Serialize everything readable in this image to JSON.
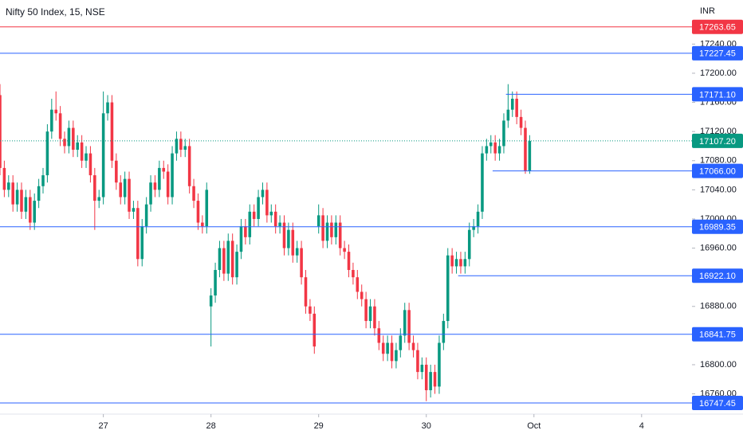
{
  "chart_data": {
    "type": "candlestick",
    "title": "Nifty 50 Index, 15, NSE",
    "currency": "INR",
    "up_color": "#089981",
    "down_color": "#f23645",
    "xlim": [
      0,
      160.7
    ],
    "ylim": [
      16732.2,
      17300.5
    ],
    "xticks": [
      {
        "value": 24,
        "label": "27"
      },
      {
        "value": 49,
        "label": "28"
      },
      {
        "value": 74,
        "label": "29"
      },
      {
        "value": 99,
        "label": "30"
      },
      {
        "value": 124,
        "label": "Oct"
      },
      {
        "value": 149,
        "label": "4"
      }
    ],
    "yticks": [
      {
        "value": 17240,
        "label": "17240.00"
      },
      {
        "value": 17200,
        "label": "17200.00"
      },
      {
        "value": 17160,
        "label": "17160.00"
      },
      {
        "value": 17120,
        "label": "17120.00"
      },
      {
        "value": 17080,
        "label": "17080.00"
      },
      {
        "value": 17040,
        "label": "17040.00"
      },
      {
        "value": 17000,
        "label": "17000.00"
      },
      {
        "value": 16960,
        "label": "16960.00"
      },
      {
        "value": 16880,
        "label": "16880.00"
      },
      {
        "value": 16800,
        "label": "16800.00"
      },
      {
        "value": 16760,
        "label": "16760.00"
      }
    ],
    "x": [
      0,
      1,
      2,
      3,
      4,
      5,
      6,
      7,
      8,
      9,
      10,
      11,
      12,
      13,
      14,
      15,
      16,
      17,
      18,
      19,
      20,
      21,
      22,
      23,
      24,
      25,
      26,
      27,
      28,
      29,
      30,
      31,
      32,
      33,
      34,
      35,
      36,
      37,
      38,
      39,
      40,
      41,
      42,
      43,
      44,
      45,
      46,
      47,
      48,
      49,
      50,
      51,
      52,
      53,
      54,
      55,
      56,
      57,
      58,
      59,
      60,
      61,
      62,
      63,
      64,
      65,
      66,
      67,
      68,
      69,
      70,
      71,
      72,
      73,
      74,
      75,
      76,
      77,
      78,
      79,
      80,
      81,
      82,
      83,
      84,
      85,
      86,
      87,
      88,
      89,
      90,
      91,
      92,
      93,
      94,
      95,
      96,
      97,
      98,
      99,
      100,
      101,
      102,
      103,
      104,
      105,
      106,
      107,
      108,
      109,
      110,
      111,
      112,
      113,
      114,
      115,
      116,
      117,
      118,
      119,
      120,
      121,
      122,
      123
    ],
    "open": [
      17170,
      17070,
      17040,
      17050,
      17020,
      17040,
      17010,
      17030,
      16995,
      17025,
      17045,
      17060,
      17120,
      17150,
      17145,
      17110,
      17100,
      17125,
      17095,
      17105,
      17080,
      17090,
      17060,
      17025,
      17030,
      17145,
      17160,
      17080,
      17050,
      17030,
      17055,
      17010,
      17015,
      16945,
      16990,
      17020,
      17050,
      17040,
      17070,
      17065,
      17030,
      17090,
      17110,
      17095,
      17100,
      17045,
      17025,
      16995,
      16990,
      16880,
      16895,
      16930,
      16960,
      16925,
      16970,
      16920,
      16955,
      16990,
      16975,
      17010,
      17000,
      17030,
      17040,
      17005,
      17010,
      16990,
      16995,
      16960,
      16985,
      16950,
      16960,
      16920,
      16880,
      16870,
      16990,
      17005,
      16970,
      16995,
      16975,
      16995,
      16960,
      16955,
      16930,
      16920,
      16900,
      16890,
      16860,
      16880,
      16850,
      16830,
      16815,
      16830,
      16805,
      16820,
      16840,
      16875,
      16830,
      16820,
      16790,
      16800,
      16765,
      16790,
      16770,
      16830,
      16860,
      16950,
      16935,
      16945,
      16935,
      16945,
      16985,
      16990,
      17010,
      17090,
      17100,
      17105,
      17090,
      17100,
      17135,
      17150,
      17165,
      17140,
      17125,
      17066
    ],
    "high": [
      17185,
      17080,
      17060,
      17060,
      17050,
      17050,
      17040,
      17040,
      17035,
      17055,
      17070,
      17130,
      17165,
      17175,
      17155,
      17120,
      17135,
      17135,
      17115,
      17115,
      17100,
      17100,
      17070,
      17040,
      17175,
      17170,
      17170,
      17090,
      17060,
      17065,
      17065,
      17025,
      17025,
      17000,
      17030,
      17060,
      17060,
      17080,
      17080,
      17075,
      17100,
      17120,
      17120,
      17110,
      17110,
      17055,
      17035,
      17005,
      17050,
      16905,
      16940,
      16970,
      16970,
      16980,
      16980,
      16965,
      17000,
      17000,
      17020,
      17020,
      17040,
      17050,
      17050,
      17020,
      17020,
      17005,
      17005,
      16995,
      16995,
      16970,
      16970,
      16930,
      16890,
      16880,
      17020,
      17015,
      17005,
      17005,
      17005,
      17005,
      16970,
      16965,
      16940,
      16930,
      16910,
      16900,
      16890,
      16890,
      16860,
      16840,
      16840,
      16840,
      16830,
      16850,
      16885,
      16885,
      16840,
      16830,
      16810,
      16810,
      16800,
      16800,
      16840,
      16870,
      16960,
      16960,
      16955,
      16955,
      16955,
      16995,
      17000,
      17020,
      17100,
      17110,
      17115,
      17115,
      17110,
      17145,
      17185,
      17175,
      17175,
      17150,
      17135,
      17115
    ],
    "low": [
      17060,
      17030,
      17030,
      17010,
      17010,
      17000,
      17000,
      16985,
      16985,
      17015,
      17035,
      17050,
      17110,
      17135,
      17100,
      17090,
      17090,
      17085,
      17085,
      17070,
      17070,
      17050,
      16985,
      17015,
      17020,
      17135,
      17070,
      17040,
      17020,
      17020,
      17000,
      17000,
      16935,
      16935,
      16980,
      17010,
      17030,
      17030,
      17055,
      17020,
      17020,
      17080,
      17085,
      17085,
      17035,
      17015,
      16985,
      16980,
      16980,
      16825,
      16885,
      16920,
      16915,
      16915,
      16910,
      16910,
      16945,
      16965,
      16965,
      16990,
      16990,
      17020,
      16995,
      16995,
      16980,
      16980,
      16950,
      16950,
      16940,
      16940,
      16910,
      16870,
      16860,
      16815,
      16980,
      16960,
      16960,
      16965,
      16965,
      16950,
      16945,
      16920,
      16910,
      16890,
      16880,
      16850,
      16850,
      16840,
      16820,
      16805,
      16805,
      16795,
      16795,
      16810,
      16830,
      16820,
      16810,
      16780,
      16780,
      16750,
      16755,
      16760,
      16760,
      16820,
      16850,
      16925,
      16925,
      16925,
      16925,
      16935,
      16975,
      16980,
      17000,
      17080,
      17090,
      17080,
      17080,
      17090,
      17125,
      17140,
      17130,
      17115,
      17062,
      17062
    ],
    "close": [
      17070,
      17040,
      17050,
      17020,
      17040,
      17010,
      17030,
      16995,
      17025,
      17045,
      17060,
      17120,
      17150,
      17145,
      17110,
      17100,
      17125,
      17095,
      17105,
      17080,
      17090,
      17060,
      17025,
      17030,
      17145,
      17160,
      17080,
      17050,
      17030,
      17055,
      17010,
      17015,
      16945,
      16990,
      17020,
      17050,
      17040,
      17070,
      17065,
      17030,
      17090,
      17110,
      17095,
      17100,
      17045,
      17025,
      16995,
      16990,
      17040,
      16895,
      16930,
      16960,
      16925,
      16970,
      16920,
      16955,
      16990,
      16975,
      17010,
      17000,
      17030,
      17040,
      17005,
      17010,
      16990,
      16995,
      16960,
      16985,
      16950,
      16960,
      16920,
      16880,
      16870,
      16825,
      17005,
      16970,
      16995,
      16975,
      16995,
      16960,
      16955,
      16930,
      16920,
      16900,
      16890,
      16860,
      16880,
      16850,
      16830,
      16815,
      16830,
      16805,
      16820,
      16840,
      16875,
      16830,
      16820,
      16790,
      16800,
      16765,
      16790,
      16770,
      16830,
      16860,
      16950,
      16935,
      16945,
      16935,
      16945,
      16985,
      16990,
      17010,
      17090,
      17100,
      17105,
      17090,
      17100,
      17135,
      17150,
      17165,
      17140,
      17125,
      17066,
      17107
    ],
    "levels": {
      "values": [
        17263.65,
        17227.45,
        17171.1,
        17066,
        16989.35,
        16922.1,
        16841.75,
        16747.45
      ],
      "value_labels": [
        "17263.65",
        "17227.45",
        "17171.10",
        "17066.00",
        "16989.35",
        "16922.10",
        "16841.75",
        "16747.45"
      ],
      "colors": [
        "#f23645",
        "#2962ff",
        "#2962ff",
        "#2962ff",
        "#2962ff",
        "#2962ff",
        "#2962ff",
        "#2962ff"
      ],
      "starts": [
        0,
        0,
        117.5,
        114.4,
        0,
        106.4,
        0,
        0
      ]
    },
    "last_price": {
      "value": 17107.2,
      "label": "17107.20",
      "color": "#089981"
    }
  }
}
